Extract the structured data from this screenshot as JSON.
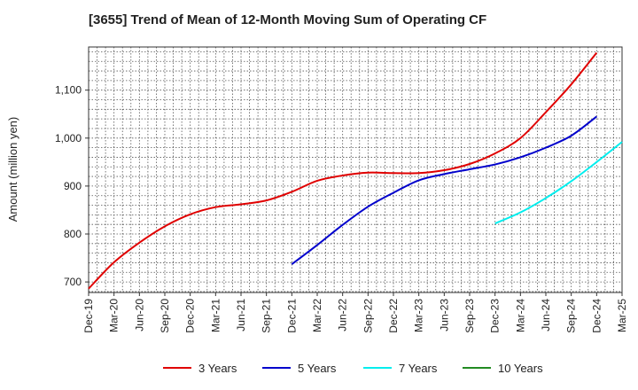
{
  "chart_data": {
    "type": "line",
    "title": "[3655]  Trend of Mean of 12-Month Moving Sum of Operating CF",
    "xlabel": "",
    "ylabel": "Amount (million yen)",
    "x_ticks": [
      "Dec-19",
      "Mar-20",
      "Jun-20",
      "Sep-20",
      "Dec-20",
      "Mar-21",
      "Jun-21",
      "Sep-21",
      "Dec-21",
      "Mar-22",
      "Jun-22",
      "Sep-22",
      "Dec-22",
      "Mar-23",
      "Jun-23",
      "Sep-23",
      "Dec-23",
      "Mar-24",
      "Jun-24",
      "Sep-24",
      "Dec-24",
      "Mar-25"
    ],
    "y_ticks": [
      700,
      800,
      900,
      1000,
      1100
    ],
    "y_tick_labels": [
      "700",
      "800",
      "900",
      "1,000",
      "1,100"
    ],
    "ylim": [
      678,
      1190
    ],
    "grid": true,
    "legend_position": "bottom",
    "series": [
      {
        "name": "3 Years",
        "color": "#e00000",
        "start_index": 0,
        "values": [
          686,
          741,
          782,
          816,
          841,
          856,
          862,
          870,
          888,
          911,
          922,
          928,
          927,
          927,
          933,
          946,
          968,
          1000,
          1054,
          1112,
          1178
        ]
      },
      {
        "name": "5 Years",
        "color": "#0000cc",
        "start_index": 8,
        "values": [
          737,
          777,
          819,
          857,
          886,
          912,
          925,
          935,
          945,
          960,
          980,
          1005,
          1045
        ]
      },
      {
        "name": "7 Years",
        "color": "#00eeee",
        "start_index": 16,
        "values": [
          822,
          845,
          875,
          910,
          950,
          992
        ]
      },
      {
        "name": "10 Years",
        "color": "#228b22",
        "start_index": 0,
        "values": []
      }
    ]
  }
}
